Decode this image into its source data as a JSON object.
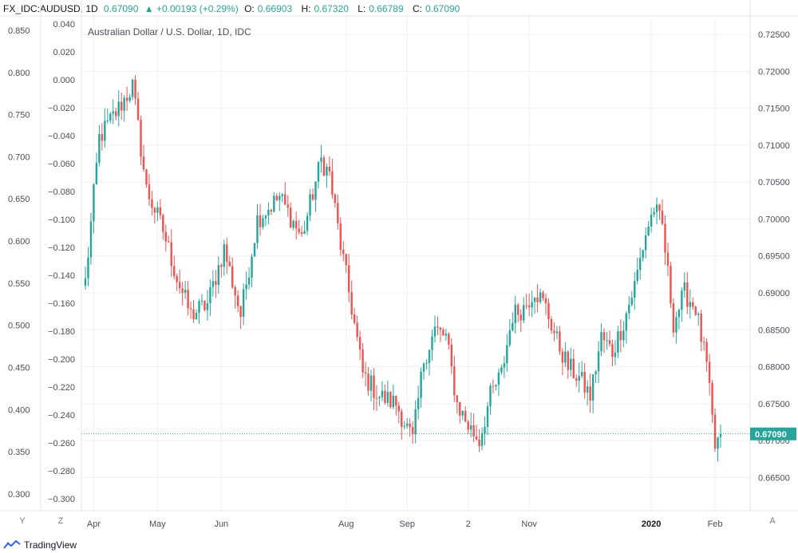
{
  "header": {
    "symbol": "FX_IDC:AUDUSD, 1D",
    "close": "0.67090",
    "change": "▲ +0.00193 (+0.29%)",
    "o_label": "O:",
    "o_value": "0.66903",
    "h_label": "H:",
    "h_value": "0.67320",
    "l_label": "L:",
    "l_value": "0.66789",
    "c_label": "C:",
    "c_value": "0.67090"
  },
  "controls": {
    "y_button": "Y",
    "z_button": "Z",
    "a_button": "A"
  },
  "footer": {
    "brand": "TradingView"
  },
  "colors": {
    "up": "#26a69a",
    "down": "#ef5350",
    "grid": "#eef0f3",
    "price_line": "#26a69a"
  },
  "chart_data": {
    "type": "candlestick",
    "title": "Australian Dollar / U.S. Dollar, 1D, IDC",
    "last_price_label": "0.67090",
    "last_price": 0.6709,
    "right_axis": {
      "ticks": [
        "0.66500",
        "0.67000",
        "0.67500",
        "0.68000",
        "0.68500",
        "0.69000",
        "0.69500",
        "0.70000",
        "0.70500",
        "0.71000",
        "0.71500",
        "0.72000",
        "0.72500"
      ],
      "range": [
        0.6605,
        0.7275
      ]
    },
    "left_axis_1": {
      "ticks": [
        "0.300",
        "0.350",
        "0.400",
        "0.450",
        "0.500",
        "0.550",
        "0.600",
        "0.650",
        "0.700",
        "0.750",
        "0.800",
        "0.850"
      ],
      "range": [
        0.28,
        0.867
      ]
    },
    "left_axis_2": {
      "ticks": [
        "−0.300",
        "−0.280",
        "−0.260",
        "−0.240",
        "−0.220",
        "−0.200",
        "−0.180",
        "−0.160",
        "−0.140",
        "−0.120",
        "−0.100",
        "−0.080",
        "−0.060",
        "−0.040",
        "−0.020",
        "0.000",
        "0.020",
        "0.040"
      ],
      "range": [
        -0.3085,
        0.0458
      ]
    },
    "x_labels": [
      {
        "label": "Apr",
        "index": 3,
        "bold": false
      },
      {
        "label": "May",
        "index": 26,
        "bold": false
      },
      {
        "label": "Jun",
        "index": 49,
        "bold": false
      },
      {
        "label": "Aug",
        "index": 94,
        "bold": false
      },
      {
        "label": "Sep",
        "index": 116,
        "bold": false
      },
      {
        "label": "2",
        "index": 138,
        "bold": false
      },
      {
        "label": "Nov",
        "index": 160,
        "bold": false
      },
      {
        "label": "2020",
        "index": 204,
        "bold": true
      },
      {
        "label": "Feb",
        "index": 227,
        "bold": false
      }
    ],
    "anchors": [
      [
        0,
        0.6915
      ],
      [
        5,
        0.711
      ],
      [
        12,
        0.715
      ],
      [
        17,
        0.718
      ],
      [
        22,
        0.704
      ],
      [
        28,
        0.6985
      ],
      [
        33,
        0.692
      ],
      [
        38,
        0.687
      ],
      [
        44,
        0.6885
      ],
      [
        50,
        0.696
      ],
      [
        56,
        0.687
      ],
      [
        62,
        0.7
      ],
      [
        70,
        0.703
      ],
      [
        78,
        0.6975
      ],
      [
        85,
        0.708
      ],
      [
        88,
        0.706
      ],
      [
        92,
        0.6965
      ],
      [
        96,
        0.688
      ],
      [
        100,
        0.679
      ],
      [
        106,
        0.676
      ],
      [
        112,
        0.675
      ],
      [
        118,
        0.67
      ],
      [
        122,
        0.681
      ],
      [
        126,
        0.685
      ],
      [
        130,
        0.684
      ],
      [
        134,
        0.675
      ],
      [
        138,
        0.672
      ],
      [
        142,
        0.67
      ],
      [
        146,
        0.676
      ],
      [
        150,
        0.679
      ],
      [
        154,
        0.687
      ],
      [
        158,
        0.688
      ],
      [
        162,
        0.6905
      ],
      [
        166,
        0.688
      ],
      [
        170,
        0.6835
      ],
      [
        174,
        0.68
      ],
      [
        178,
        0.6785
      ],
      [
        182,
        0.676
      ],
      [
        186,
        0.684
      ],
      [
        190,
        0.682
      ],
      [
        194,
        0.686
      ],
      [
        198,
        0.691
      ],
      [
        202,
        0.698
      ],
      [
        205,
        0.7015
      ],
      [
        208,
        0.699
      ],
      [
        212,
        0.686
      ],
      [
        216,
        0.69
      ],
      [
        220,
        0.688
      ],
      [
        224,
        0.68
      ],
      [
        227,
        0.669
      ],
      [
        229,
        0.6709
      ]
    ]
  }
}
